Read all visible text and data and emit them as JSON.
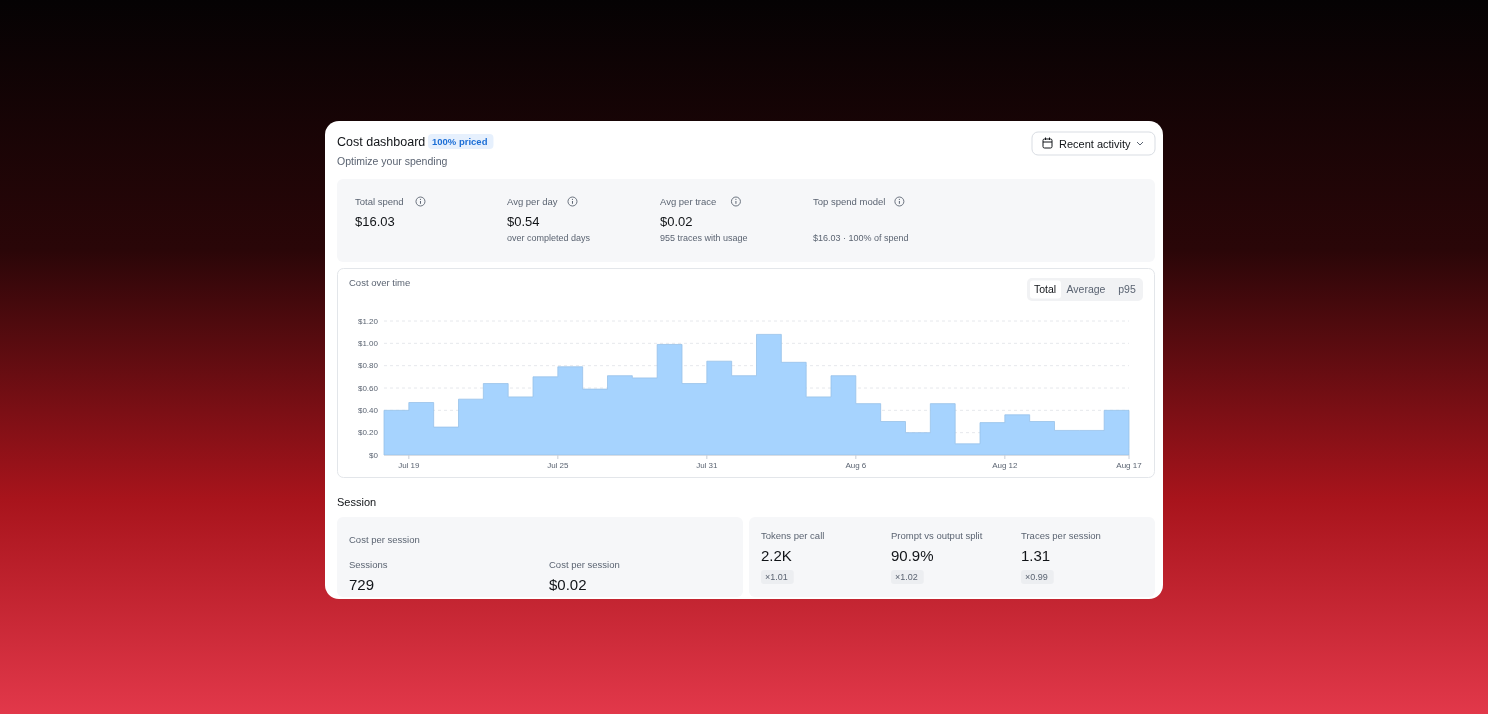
{
  "chart_data": [
    {
      "type": "other",
      "title": "Cost dashboard",
      "subtitle": "Optimize your spending",
      "annotations": [
        "100% priced",
        "Recent activity",
        "Total spend",
        "$16.03",
        "Avg per day",
        "$0.54",
        "over completed days",
        "Avg per trace",
        "$0.02",
        "955 traces with usage",
        "Top spend model",
        "$16.03 · 100% of spend"
      ]
    },
    {
      "type": "area",
      "title": "Cost over time",
      "annotations": [
        "Total",
        "Average",
        "p95"
      ],
      "x": [
        "--07-18",
        "--07-19",
        "--07-20",
        "--07-21",
        "--07-22",
        "--07-23",
        "--07-24",
        "--07-25",
        "--07-26",
        "--07-27",
        "--07-28",
        "--07-29",
        "--07-30",
        "--07-31",
        "--08-01",
        "--08-02",
        "--08-03",
        "--08-04",
        "--08-05",
        "--08-06",
        "--08-07",
        "--08-08",
        "--08-09",
        "--08-10",
        "--08-11",
        "--08-12",
        "--08-13",
        "--08-14",
        "--08-15",
        "--08-16",
        "--08-17"
      ],
      "values": [
        0.4,
        0.47,
        0.25,
        0.5,
        0.64,
        0.52,
        0.7,
        0.79,
        0.59,
        0.71,
        0.69,
        0.99,
        0.64,
        0.84,
        0.71,
        1.08,
        0.83,
        0.52,
        0.71,
        0.46,
        0.3,
        0.2,
        0.46,
        0.1,
        0.29,
        0.36,
        0.3,
        0.22,
        0.22,
        0.4,
        0.06
      ],
      "color": "#a6d3fe",
      "xlim": [
        "--07-18",
        "--08-17"
      ],
      "xticks": [
        {
          "value": "--07-19",
          "label": "Jul 19"
        },
        {
          "value": "--07-25",
          "label": "Jul 25"
        },
        {
          "value": "--07-31",
          "label": "Jul 31"
        },
        {
          "value": "--08-06",
          "label": "Aug 6"
        },
        {
          "value": "--08-12",
          "label": "Aug 12"
        },
        {
          "value": "--08-17",
          "label": "Aug 17"
        }
      ],
      "ylim": [
        0,
        1.2
      ],
      "yticks": [
        {
          "value": 0,
          "label": "$0"
        },
        {
          "value": 0.2,
          "label": "$0.20"
        },
        {
          "value": 0.4,
          "label": "$0.40"
        },
        {
          "value": 0.6,
          "label": "$0.60"
        },
        {
          "value": 0.8,
          "label": "$0.80"
        },
        {
          "value": 1.0,
          "label": "$1.00"
        },
        {
          "value": 1.2,
          "label": "$1.20"
        }
      ],
      "grid": "y"
    },
    {
      "type": "other",
      "title": "Session",
      "annotations": [
        "Cost per session",
        "Sessions",
        "729",
        "Cost per session",
        "$0.02",
        "Tokens per call",
        "2.2K",
        "×1.01",
        "Prompt vs output split",
        "90.9%",
        "×1.02",
        "Traces per session",
        "1.31",
        "×0.99"
      ]
    }
  ]
}
